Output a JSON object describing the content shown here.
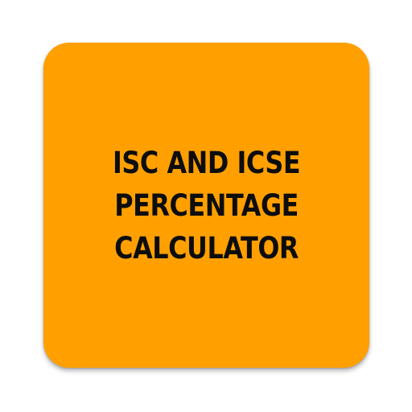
{
  "icon": {
    "background_color": "#FFA000",
    "text_color": "#0D0D0D",
    "title_lines": [
      "ISC AND ICSE",
      "PERCENTAGE",
      "CALCULATOR"
    ]
  }
}
